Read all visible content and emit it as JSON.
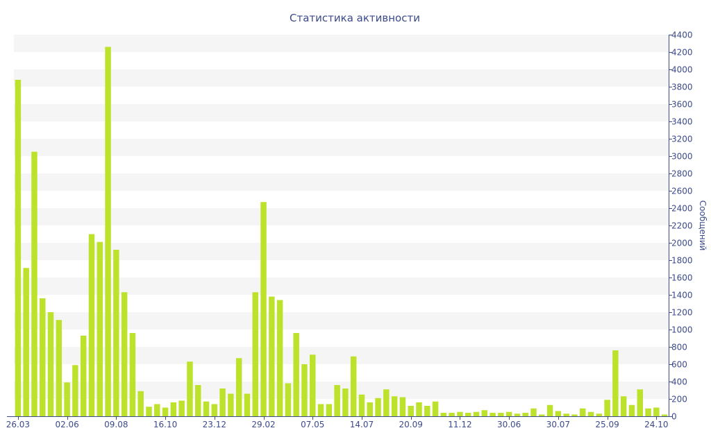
{
  "chart_data": {
    "type": "bar",
    "title": "Статистика активности",
    "ylabel": "Сообщений",
    "xlabel": "",
    "ylim": [
      0,
      4400
    ],
    "y_ticks": [
      0,
      200,
      400,
      600,
      800,
      1000,
      1200,
      1400,
      1600,
      1800,
      2000,
      2200,
      2400,
      2600,
      2800,
      3000,
      3200,
      3400,
      3600,
      3800,
      4000,
      4200,
      4400
    ],
    "y_axis_position": "right",
    "grid": "alternating horizontal bands",
    "x_tick_labels": [
      {
        "index": 0,
        "label": "26.03"
      },
      {
        "index": 6,
        "label": "02.06"
      },
      {
        "index": 12,
        "label": "09.08"
      },
      {
        "index": 18,
        "label": "16.10"
      },
      {
        "index": 24,
        "label": "23.12"
      },
      {
        "index": 30,
        "label": "29.02"
      },
      {
        "index": 36,
        "label": "07.05"
      },
      {
        "index": 42,
        "label": "14.07"
      },
      {
        "index": 48,
        "label": "20.09"
      },
      {
        "index": 54,
        "label": "11.12"
      },
      {
        "index": 60,
        "label": "30.06"
      },
      {
        "index": 66,
        "label": "30.07"
      },
      {
        "index": 72,
        "label": "25.09"
      },
      {
        "index": 78,
        "label": "24.10"
      }
    ],
    "series": [
      {
        "values": [
          3880,
          1710,
          3050,
          1360,
          1200,
          1110,
          390,
          590,
          930,
          2100,
          2010,
          4260,
          1920,
          1430,
          960,
          290,
          110,
          140,
          100,
          160,
          180,
          630,
          360,
          170,
          140,
          320,
          260,
          670,
          260,
          1430,
          2470,
          1380,
          1340,
          380,
          960,
          600,
          710,
          140,
          140,
          360,
          320,
          690,
          250,
          160,
          210,
          310,
          230,
          220,
          120,
          160,
          120,
          170,
          40,
          40,
          50,
          40,
          50,
          70,
          40,
          40,
          50,
          30,
          40,
          90,
          20,
          130,
          60,
          30,
          20,
          90,
          50,
          30,
          190,
          760,
          230,
          130,
          310,
          90,
          100,
          20
        ]
      }
    ],
    "colors": {
      "bar": "#bde22b",
      "band": "#f5f5f5",
      "text": "#3c4a8a",
      "axis": "#3c4a8a"
    }
  }
}
